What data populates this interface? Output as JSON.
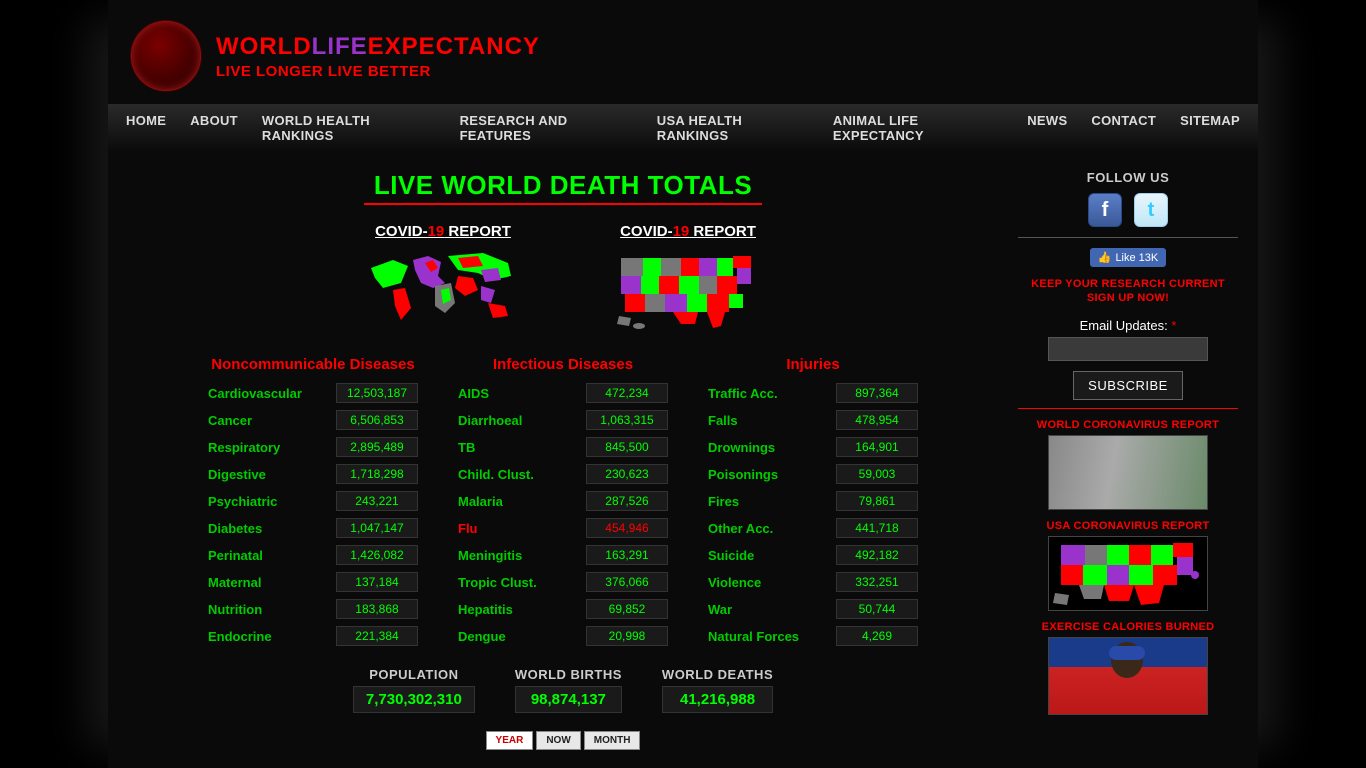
{
  "brand": {
    "w1": "WORLD",
    "w2": "LIFE",
    "w3": "EXPECTANCY",
    "tag": "LIVE LONGER LIVE BETTER"
  },
  "nav": [
    "HOME",
    "ABOUT",
    "WORLD HEALTH RANKINGS",
    "RESEARCH AND FEATURES",
    "USA HEALTH RANKINGS",
    "ANIMAL LIFE EXPECTANCY",
    "NEWS",
    "CONTACT",
    "SITEMAP"
  ],
  "main_title": "LIVE WORLD DEATH TOTALS",
  "report": {
    "prefix": "COVID-",
    "num": "19",
    "suffix": " REPORT"
  },
  "categories": [
    {
      "name": "Noncommunicable Diseases",
      "items": [
        {
          "label": "Cardiovascular",
          "value": "12,503,187"
        },
        {
          "label": "Cancer",
          "value": "6,506,853"
        },
        {
          "label": "Respiratory",
          "value": "2,895,489"
        },
        {
          "label": "Digestive",
          "value": "1,718,298"
        },
        {
          "label": "Psychiatric",
          "value": "243,221"
        },
        {
          "label": "Diabetes",
          "value": "1,047,147"
        },
        {
          "label": "Perinatal",
          "value": "1,426,082"
        },
        {
          "label": "Maternal",
          "value": "137,184"
        },
        {
          "label": "Nutrition",
          "value": "183,868"
        },
        {
          "label": "Endocrine",
          "value": "221,384"
        }
      ]
    },
    {
      "name": "Infectious Diseases",
      "items": [
        {
          "label": "AIDS",
          "value": "472,234"
        },
        {
          "label": "Diarrhoeal",
          "value": "1,063,315"
        },
        {
          "label": "TB",
          "value": "845,500"
        },
        {
          "label": "Child. Clust.",
          "value": "230,623"
        },
        {
          "label": "Malaria",
          "value": "287,526"
        },
        {
          "label": "Flu",
          "value": "454,946",
          "highlight": true
        },
        {
          "label": "Meningitis",
          "value": "163,291"
        },
        {
          "label": "Tropic Clust.",
          "value": "376,066"
        },
        {
          "label": "Hepatitis",
          "value": "69,852"
        },
        {
          "label": "Dengue",
          "value": "20,998"
        }
      ]
    },
    {
      "name": "Injuries",
      "items": [
        {
          "label": "Traffic Acc.",
          "value": "897,364"
        },
        {
          "label": "Falls",
          "value": "478,954"
        },
        {
          "label": "Drownings",
          "value": "164,901"
        },
        {
          "label": "Poisonings",
          "value": "59,003"
        },
        {
          "label": "Fires",
          "value": "79,861"
        },
        {
          "label": "Other Acc.",
          "value": "441,718"
        },
        {
          "label": "Suicide",
          "value": "492,182"
        },
        {
          "label": "Violence",
          "value": "332,251"
        },
        {
          "label": "War",
          "value": "50,744"
        },
        {
          "label": "Natural Forces",
          "value": "4,269"
        }
      ]
    }
  ],
  "totals": [
    {
      "label": "POPULATION",
      "value": "7,730,302,310"
    },
    {
      "label": "WORLD BIRTHS",
      "value": "98,874,137"
    },
    {
      "label": "WORLD DEATHS",
      "value": "41,216,988"
    }
  ],
  "toggles": [
    "YEAR",
    "NOW",
    "MONTH"
  ],
  "active_toggle": 0,
  "sidebar": {
    "follow": "FOLLOW US",
    "like": "Like 13K",
    "research": "KEEP YOUR RESEARCH CURRENT SIGN UP NOW!",
    "email_label": "Email Updates:",
    "subscribe": "SUBSCRIBE",
    "promos": [
      "WORLD CORONAVIRUS REPORT",
      "USA CORONAVIRUS REPORT",
      "EXERCISE CALORIES BURNED"
    ]
  },
  "map_colors": {
    "green": "#00ff00",
    "red": "#ff0000",
    "purple": "#9933cc",
    "gray": "#777"
  }
}
